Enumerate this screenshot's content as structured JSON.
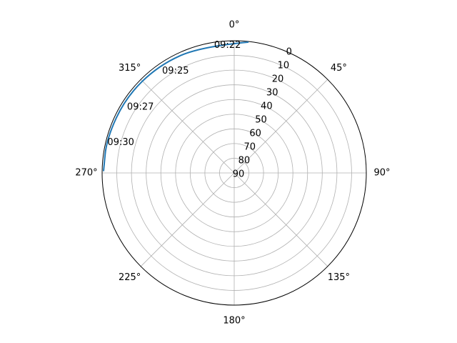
{
  "chart_data": {
    "type": "line",
    "projection": "polar",
    "theta_zero_location": "N",
    "theta_direction": "clockwise",
    "theta_tick_labels": [
      "0°",
      "45°",
      "90°",
      "135°",
      "180°",
      "225°",
      "270°",
      "315°"
    ],
    "r_axis": {
      "inverted": true,
      "range": [
        90,
        0
      ],
      "tick_values": [
        0,
        10,
        20,
        30,
        40,
        50,
        60,
        70,
        80,
        90
      ],
      "tick_labels": [
        "0",
        "10",
        "20",
        "30",
        "40",
        "50",
        "60",
        "70",
        "80",
        "90"
      ]
    },
    "grid": true,
    "series": [
      {
        "color": "#1f77b4",
        "points": [
          {
            "azimuth": 6,
            "elevation": 0.5
          },
          {
            "azimuth": 345,
            "elevation": 1
          },
          {
            "azimuth": 325,
            "elevation": 0.5
          },
          {
            "azimuth": 305,
            "elevation": 0
          },
          {
            "azimuth": 285,
            "elevation": 0
          },
          {
            "azimuth": 271,
            "elevation": 1
          }
        ]
      }
    ],
    "annotations": [
      {
        "text": "09:22",
        "azimuth": 357,
        "elevation": 3
      },
      {
        "text": "09:25",
        "azimuth": 330,
        "elevation": 10
      },
      {
        "text": "09:27",
        "azimuth": 305,
        "elevation": 12
      },
      {
        "text": "09:30",
        "azimuth": 285,
        "elevation": 10
      }
    ]
  }
}
